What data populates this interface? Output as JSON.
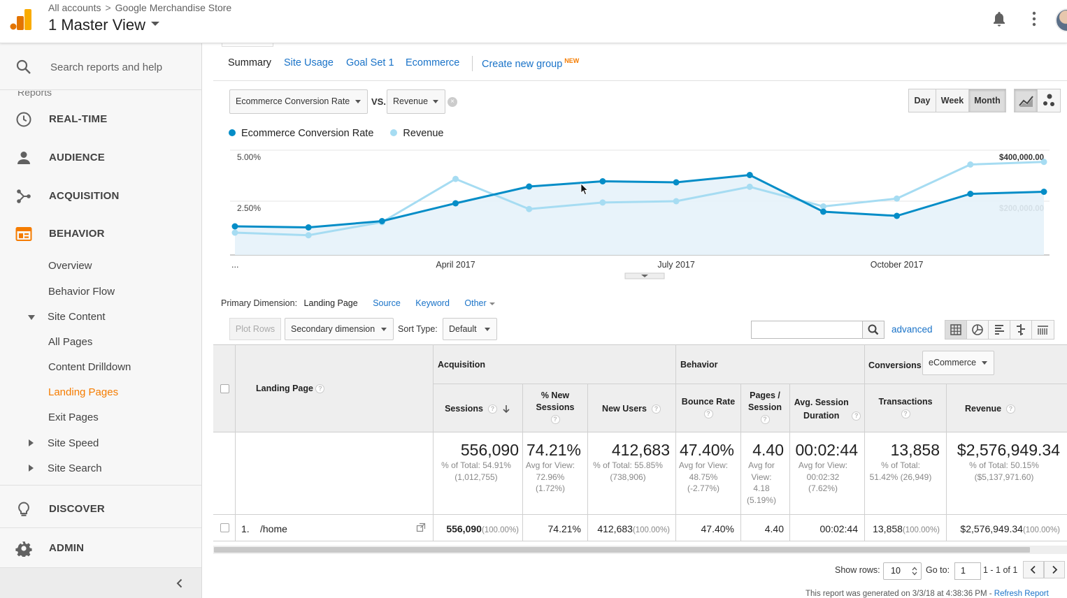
{
  "header": {
    "breadcrumb_all": "All accounts",
    "breadcrumb_sep": ">",
    "breadcrumb_store": "Google Merchandise Store",
    "view_title": "1 Master View"
  },
  "sidebar": {
    "search_placeholder": "Search reports and help",
    "reports_label": "Reports",
    "main_items": [
      {
        "label": "REAL-TIME",
        "icon": "clock-icon"
      },
      {
        "label": "AUDIENCE",
        "icon": "person-icon"
      },
      {
        "label": "ACQUISITION",
        "icon": "acquisition-icon"
      },
      {
        "label": "BEHAVIOR",
        "icon": "behavior-icon"
      }
    ],
    "behavior_items": [
      "Overview",
      "Behavior Flow",
      "Site Content",
      "All Pages",
      "Content Drilldown",
      "Landing Pages",
      "Exit Pages",
      "Site Speed",
      "Site Search"
    ],
    "discover_label": "DISCOVER",
    "admin_label": "ADMIN"
  },
  "tabs": [
    "Summary",
    "Site Usage",
    "Goal Set 1",
    "Ecommerce",
    "Create new group"
  ],
  "new_badge": "NEW",
  "metric_selector": {
    "primary": "Ecommerce Conversion Rate",
    "vs": "VS.",
    "secondary": "Revenue",
    "clear": "×"
  },
  "granularity": {
    "day": "Day",
    "week": "Week",
    "month": "Month",
    "selected": "Month"
  },
  "colors": {
    "primary": "#058dc7",
    "secondary": "#a6dcf2",
    "fill": "#e6f2fa",
    "accent": "#f57c00",
    "link": "#1a73c8"
  },
  "chart_data": {
    "type": "line",
    "series": [
      {
        "name": "Ecommerce Conversion Rate",
        "axis": "left",
        "values": [
          1.3,
          1.25,
          1.55,
          2.4,
          3.2,
          3.45,
          3.4,
          3.75,
          2.0,
          1.8,
          2.85,
          2.95
        ]
      },
      {
        "name": "Revenue",
        "axis": "right",
        "values": [
          80000,
          70000,
          120000,
          285000,
          170000,
          195000,
          200000,
          255000,
          180000,
          210000,
          340000,
          350000
        ]
      }
    ],
    "x_tick_labels": [
      {
        "index": 0,
        "label": "..."
      },
      {
        "index": 3,
        "label": "April 2017"
      },
      {
        "index": 6,
        "label": "July 2017"
      },
      {
        "index": 9,
        "label": "October 2017"
      }
    ],
    "y_left": {
      "ticks": [
        "5.00%",
        "2.50%"
      ],
      "range": [
        0,
        5
      ]
    },
    "y_right": {
      "ticks": [
        "$400,000.00",
        "$200,000.00"
      ],
      "range": [
        0,
        400000
      ]
    },
    "grid": true
  },
  "primary_dimension": {
    "label": "Primary Dimension:",
    "current": "Landing Page",
    "options": [
      "Source",
      "Keyword",
      "Other"
    ]
  },
  "toolbar": {
    "plot_rows": "Plot Rows",
    "secondary_dimension": "Secondary dimension",
    "sort_type_label": "Sort Type:",
    "sort_type_value": "Default",
    "advanced": "advanced"
  },
  "table": {
    "dimension_header": "Landing Page",
    "groups": {
      "acquisition": "Acquisition",
      "behavior": "Behavior",
      "conversions": "Conversions",
      "conversions_select": "eCommerce"
    },
    "columns": [
      "Sessions",
      "% New Sessions",
      "New Users",
      "Bounce Rate",
      "Pages / Session",
      "Avg. Session Duration",
      "Transactions",
      "Revenue"
    ],
    "totals": [
      {
        "big": "556,090",
        "sub": [
          "% of Total: 54.91%",
          "(1,012,755)"
        ]
      },
      {
        "big": "74.21%",
        "sub": [
          "Avg for View:",
          "72.96%",
          "(1.72%)"
        ]
      },
      {
        "big": "412,683",
        "sub": [
          "% of Total: 55.85%",
          "(738,906)"
        ]
      },
      {
        "big": "47.40%",
        "sub": [
          "Avg for View:",
          "48.75%",
          "(-2.77%)"
        ]
      },
      {
        "big": "4.40",
        "sub": [
          "Avg for",
          "View:",
          "4.18",
          "(5.19%)"
        ]
      },
      {
        "big": "00:02:44",
        "sub": [
          "Avg for View:",
          "00:02:32",
          "(7.62%)"
        ]
      },
      {
        "big": "13,858",
        "sub": [
          "% of Total:",
          "51.42% (26,949)"
        ]
      },
      {
        "big": "$2,576,949.34",
        "sub": [
          "% of Total: 50.15%",
          "($5,137,971.60)"
        ]
      }
    ],
    "rows": [
      {
        "index": "1.",
        "page": "/home",
        "sessions": "556,090",
        "sessions_pct": "(100.00%)",
        "new_sessions": "74.21%",
        "new_users": "412,683",
        "new_users_pct": "(100.00%)",
        "bounce_rate": "47.40%",
        "pages_session": "4.40",
        "duration": "00:02:44",
        "transactions": "13,858",
        "transactions_pct": "(100.00%)",
        "revenue": "$2,576,949.34",
        "revenue_pct": "(100.00%)"
      }
    ]
  },
  "pager": {
    "show_rows_label": "Show rows:",
    "show_rows_value": "10",
    "goto_label": "Go to:",
    "goto_value": "1",
    "range": "1 - 1 of 1"
  },
  "footer": {
    "generated": "This report was generated on 3/3/18 at 4:38:36 PM - ",
    "refresh": "Refresh Report"
  }
}
